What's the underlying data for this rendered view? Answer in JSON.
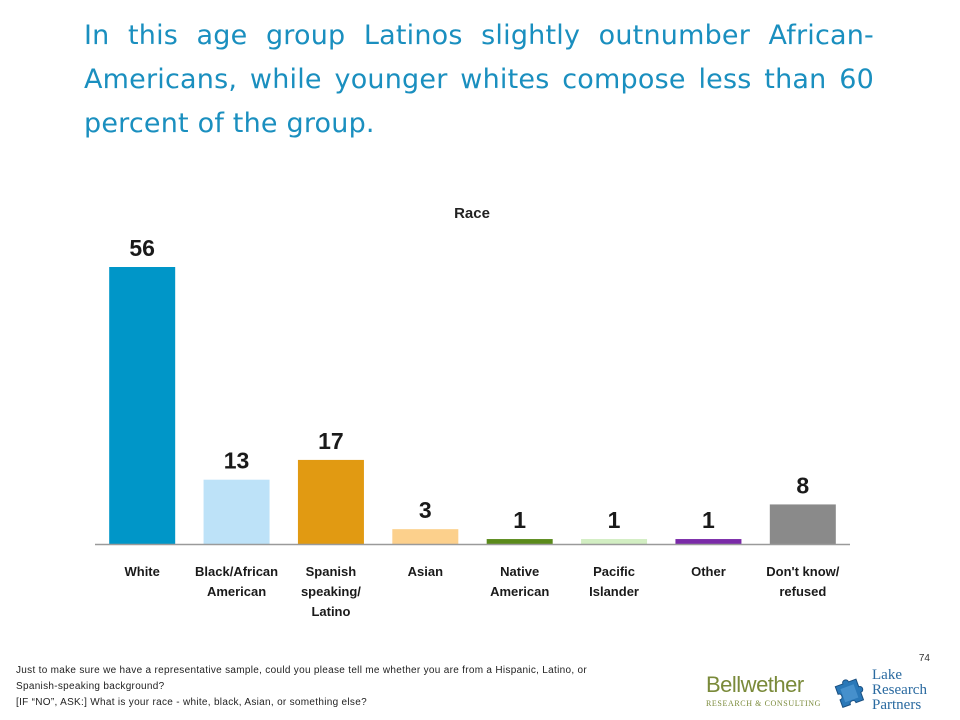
{
  "slide": {
    "title": "In this age group Latinos slightly outnumber African-Americans, while younger whites compose less than 60 percent of the group.",
    "page_number": "74"
  },
  "chart_data": {
    "type": "bar",
    "title": "Race",
    "categories": [
      [
        "White"
      ],
      [
        "Black/African",
        "American"
      ],
      [
        "Spanish",
        "speaking/",
        "Latino"
      ],
      [
        "Asian"
      ],
      [
        "Native",
        "American"
      ],
      [
        "Pacific",
        "Islander"
      ],
      [
        "Other"
      ],
      [
        "Don't know/",
        "refused"
      ]
    ],
    "values": [
      56,
      13,
      17,
      3,
      1,
      1,
      1,
      8
    ],
    "colors": [
      "#0096c8",
      "#bde2f8",
      "#e19a12",
      "#fcd08c",
      "#5a8a1a",
      "#d2eec2",
      "#7a2aa8",
      "#8a8a8a"
    ],
    "axis_color": "#9a9a9a",
    "ylim": [
      0,
      56
    ],
    "grid": false,
    "legend": "none"
  },
  "footnote": {
    "lines": [
      "Just to make sure we have a representative sample, could you please tell me whether you are from a Hispanic, Latino, or",
      "Spanish-speaking background?",
      "[IF “NO”, ASK:] What is your race - white, black, Asian, or something else?"
    ]
  },
  "logos": {
    "bellwether": {
      "name": "Bellwether",
      "subtitle": "RESEARCH & CONSULTING"
    },
    "lake_research": {
      "line1": "Lake",
      "line2": "Research",
      "line3": "Partners"
    }
  }
}
